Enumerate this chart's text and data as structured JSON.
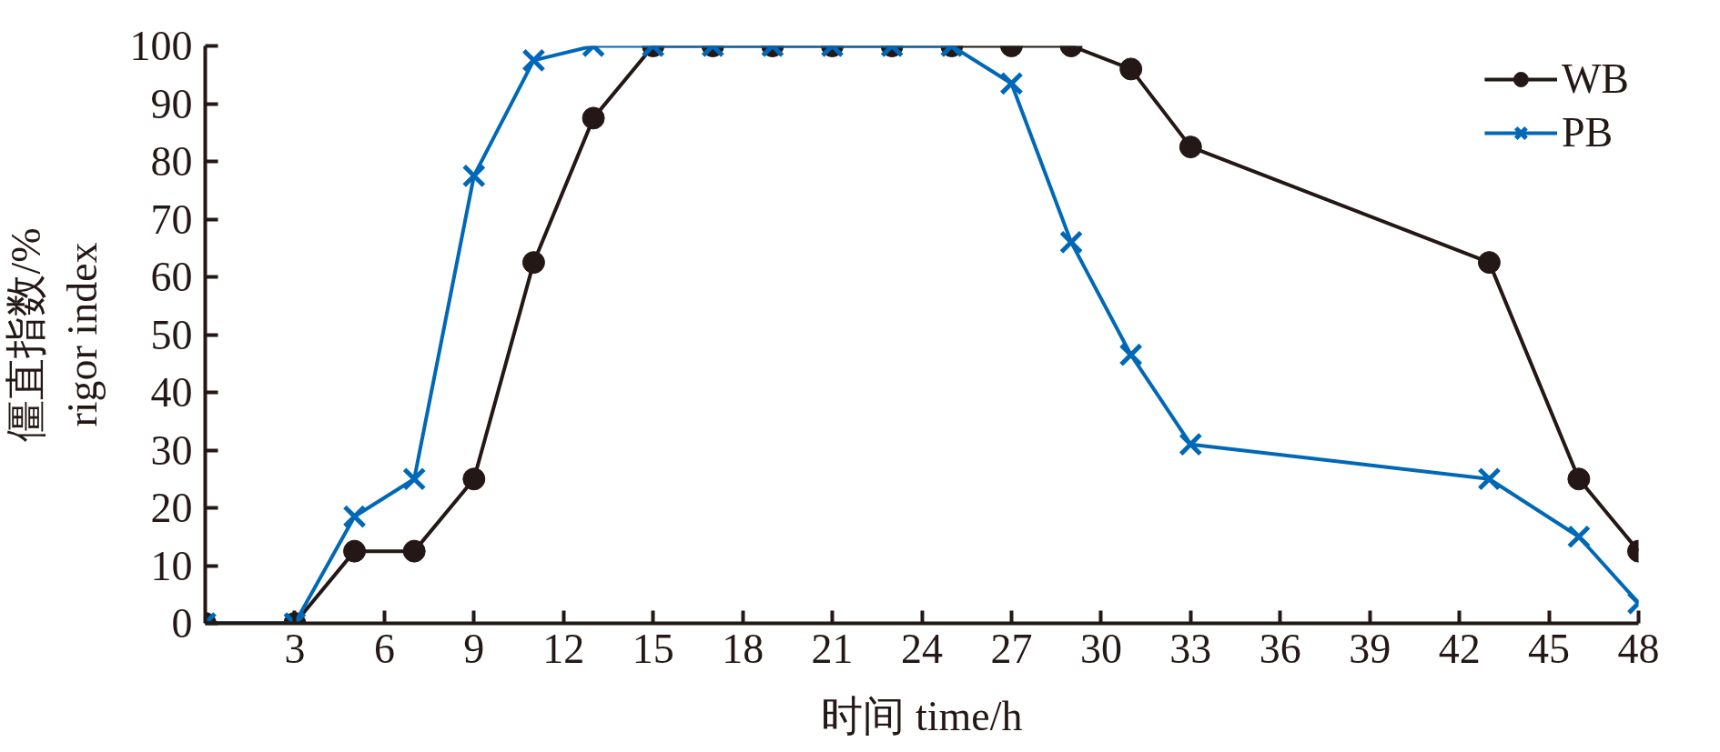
{
  "chart_data": {
    "type": "line",
    "xlabel": "时间 time/h",
    "ylabel": "僵直指数/%\nrigor index",
    "x": [
      0,
      3,
      5,
      7,
      9,
      11,
      13,
      15,
      17,
      19,
      21,
      23,
      25,
      27,
      29,
      31,
      33,
      43,
      46,
      48
    ],
    "series": [
      {
        "name": "WB",
        "color": "#231815",
        "marker": "circle",
        "values": [
          0,
          0,
          12.5,
          12.5,
          25,
          62.5,
          87.5,
          100,
          100,
          100,
          100,
          100,
          100,
          100,
          100,
          96,
          82.5,
          62.5,
          25,
          12.5
        ]
      },
      {
        "name": "PB",
        "color": "#0068b7",
        "marker": "cross",
        "values": [
          0,
          0,
          18.5,
          25,
          77.5,
          97.5,
          100,
          100,
          100,
          100,
          100,
          100,
          100,
          93.5,
          66,
          46.5,
          31,
          25,
          15,
          3.5
        ]
      }
    ],
    "xlim": [
      0,
      48
    ],
    "ylim": [
      0,
      100
    ],
    "xticks": [
      3,
      6,
      9,
      12,
      15,
      18,
      21,
      24,
      27,
      30,
      33,
      36,
      39,
      42,
      45,
      48
    ],
    "yticks": [
      0,
      10,
      20,
      30,
      40,
      50,
      60,
      70,
      80,
      90,
      100
    ],
    "grid": false,
    "legend": "top right",
    "line_style": "solid"
  }
}
